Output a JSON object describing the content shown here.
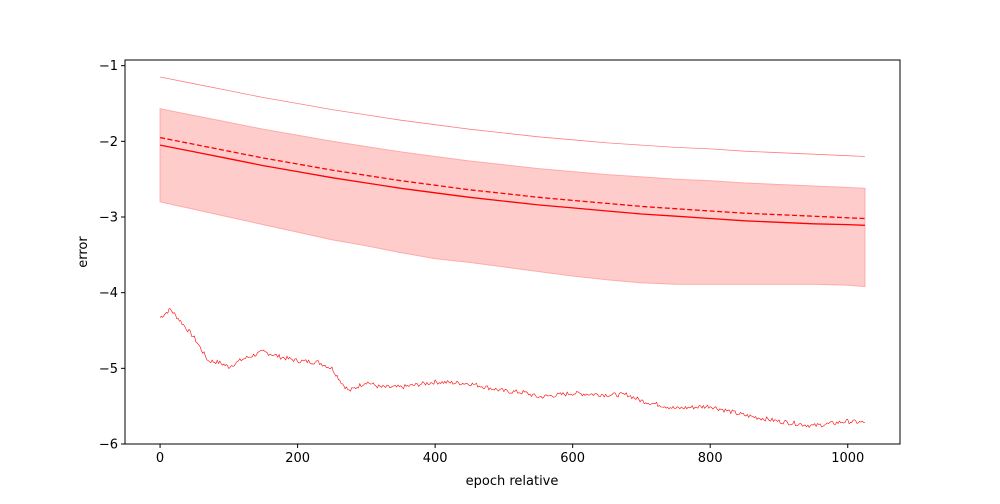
{
  "chart_data": {
    "type": "line",
    "title": "",
    "xlabel": "epoch relative",
    "ylabel": "error",
    "xlim": [
      -51,
      1076
    ],
    "ylim": [
      -6.0,
      -0.925
    ],
    "grid": false,
    "xticks": [
      0,
      200,
      400,
      600,
      800,
      1000
    ],
    "xtick_labels": [
      "0",
      "200",
      "400",
      "600",
      "800",
      "1000"
    ],
    "yticks": [
      -1,
      -2,
      -3,
      -4,
      -5,
      -6
    ],
    "ytick_labels": [
      "−1",
      "−2",
      "−3",
      "−4",
      "−5",
      "−6"
    ],
    "color": "#ff0000",
    "band_color": "#ffcccc",
    "x": [
      0,
      50,
      100,
      150,
      200,
      250,
      300,
      350,
      400,
      450,
      500,
      550,
      600,
      650,
      700,
      750,
      800,
      850,
      900,
      950,
      1000,
      1025
    ],
    "series": [
      {
        "name": "max",
        "style": "thin",
        "values": [
          -1.15,
          -1.24,
          -1.33,
          -1.42,
          -1.5,
          -1.58,
          -1.65,
          -1.72,
          -1.78,
          -1.84,
          -1.89,
          -1.94,
          -1.98,
          -2.02,
          -2.05,
          -2.08,
          -2.1,
          -2.13,
          -2.15,
          -2.17,
          -2.19,
          -2.2
        ]
      },
      {
        "name": "band-upper",
        "style": "band",
        "values": [
          -1.57,
          -1.66,
          -1.75,
          -1.84,
          -1.92,
          -2.0,
          -2.07,
          -2.14,
          -2.2,
          -2.26,
          -2.31,
          -2.36,
          -2.4,
          -2.44,
          -2.47,
          -2.5,
          -2.52,
          -2.55,
          -2.57,
          -2.59,
          -2.61,
          -2.62
        ]
      },
      {
        "name": "band-lower",
        "style": "band",
        "values": [
          -2.8,
          -2.9,
          -3.0,
          -3.1,
          -3.2,
          -3.3,
          -3.38,
          -3.47,
          -3.55,
          -3.6,
          -3.66,
          -3.72,
          -3.78,
          -3.83,
          -3.87,
          -3.89,
          -3.89,
          -3.89,
          -3.89,
          -3.89,
          -3.9,
          -3.92
        ]
      },
      {
        "name": "median",
        "style": "dashed",
        "values": [
          -1.95,
          -2.04,
          -2.13,
          -2.22,
          -2.3,
          -2.38,
          -2.45,
          -2.52,
          -2.58,
          -2.64,
          -2.69,
          -2.74,
          -2.78,
          -2.82,
          -2.86,
          -2.89,
          -2.92,
          -2.95,
          -2.97,
          -2.99,
          -3.01,
          -3.02
        ]
      },
      {
        "name": "mean",
        "style": "solid",
        "values": [
          -2.05,
          -2.14,
          -2.23,
          -2.32,
          -2.4,
          -2.48,
          -2.55,
          -2.62,
          -2.68,
          -2.74,
          -2.79,
          -2.84,
          -2.88,
          -2.92,
          -2.96,
          -2.99,
          -3.02,
          -3.05,
          -3.07,
          -3.09,
          -3.1,
          -3.11
        ]
      },
      {
        "name": "min",
        "style": "noisy",
        "x": [
          0,
          15,
          30,
          50,
          70,
          85,
          100,
          120,
          150,
          175,
          200,
          230,
          250,
          265,
          275,
          300,
          320,
          350,
          400,
          450,
          500,
          530,
          550,
          600,
          650,
          680,
          700,
          750,
          800,
          820,
          850,
          900,
          950,
          1000,
          1025
        ],
        "values": [
          -4.33,
          -4.22,
          -4.38,
          -4.6,
          -4.9,
          -4.92,
          -4.98,
          -4.88,
          -4.78,
          -4.85,
          -4.9,
          -4.92,
          -5.0,
          -5.2,
          -5.3,
          -5.18,
          -5.25,
          -5.25,
          -5.18,
          -5.2,
          -5.3,
          -5.32,
          -5.38,
          -5.33,
          -5.35,
          -5.35,
          -5.43,
          -5.53,
          -5.5,
          -5.55,
          -5.62,
          -5.7,
          -5.76,
          -5.7,
          -5.72
        ]
      }
    ]
  }
}
